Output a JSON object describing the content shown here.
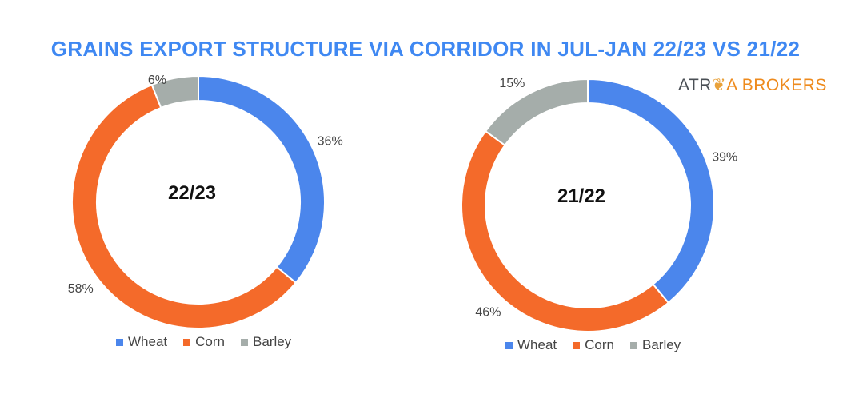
{
  "chart_data": [
    {
      "type": "pie",
      "donut": true,
      "center_label": "22/23",
      "categories": [
        "Wheat",
        "Corn",
        "Barley"
      ],
      "values": [
        36,
        58,
        6
      ],
      "labels": [
        "36%",
        "58%",
        "6%"
      ],
      "colors": [
        "#4b86ec",
        "#f46a2a",
        "#a5adaa"
      ]
    },
    {
      "type": "pie",
      "donut": true,
      "center_label": "21/22",
      "categories": [
        "Wheat",
        "Corn",
        "Barley"
      ],
      "values": [
        39,
        46,
        15
      ],
      "labels": [
        "39%",
        "46%",
        "15%"
      ],
      "colors": [
        "#4b86ec",
        "#f46a2a",
        "#a5adaa"
      ]
    }
  ],
  "title": "GRAINS EXPORT STRUCTURE VIA CORRIDOR IN JUL-JAN 22/23 VS 21/22",
  "logo": {
    "part1": "ATR",
    "part2": "A BROKERS"
  }
}
